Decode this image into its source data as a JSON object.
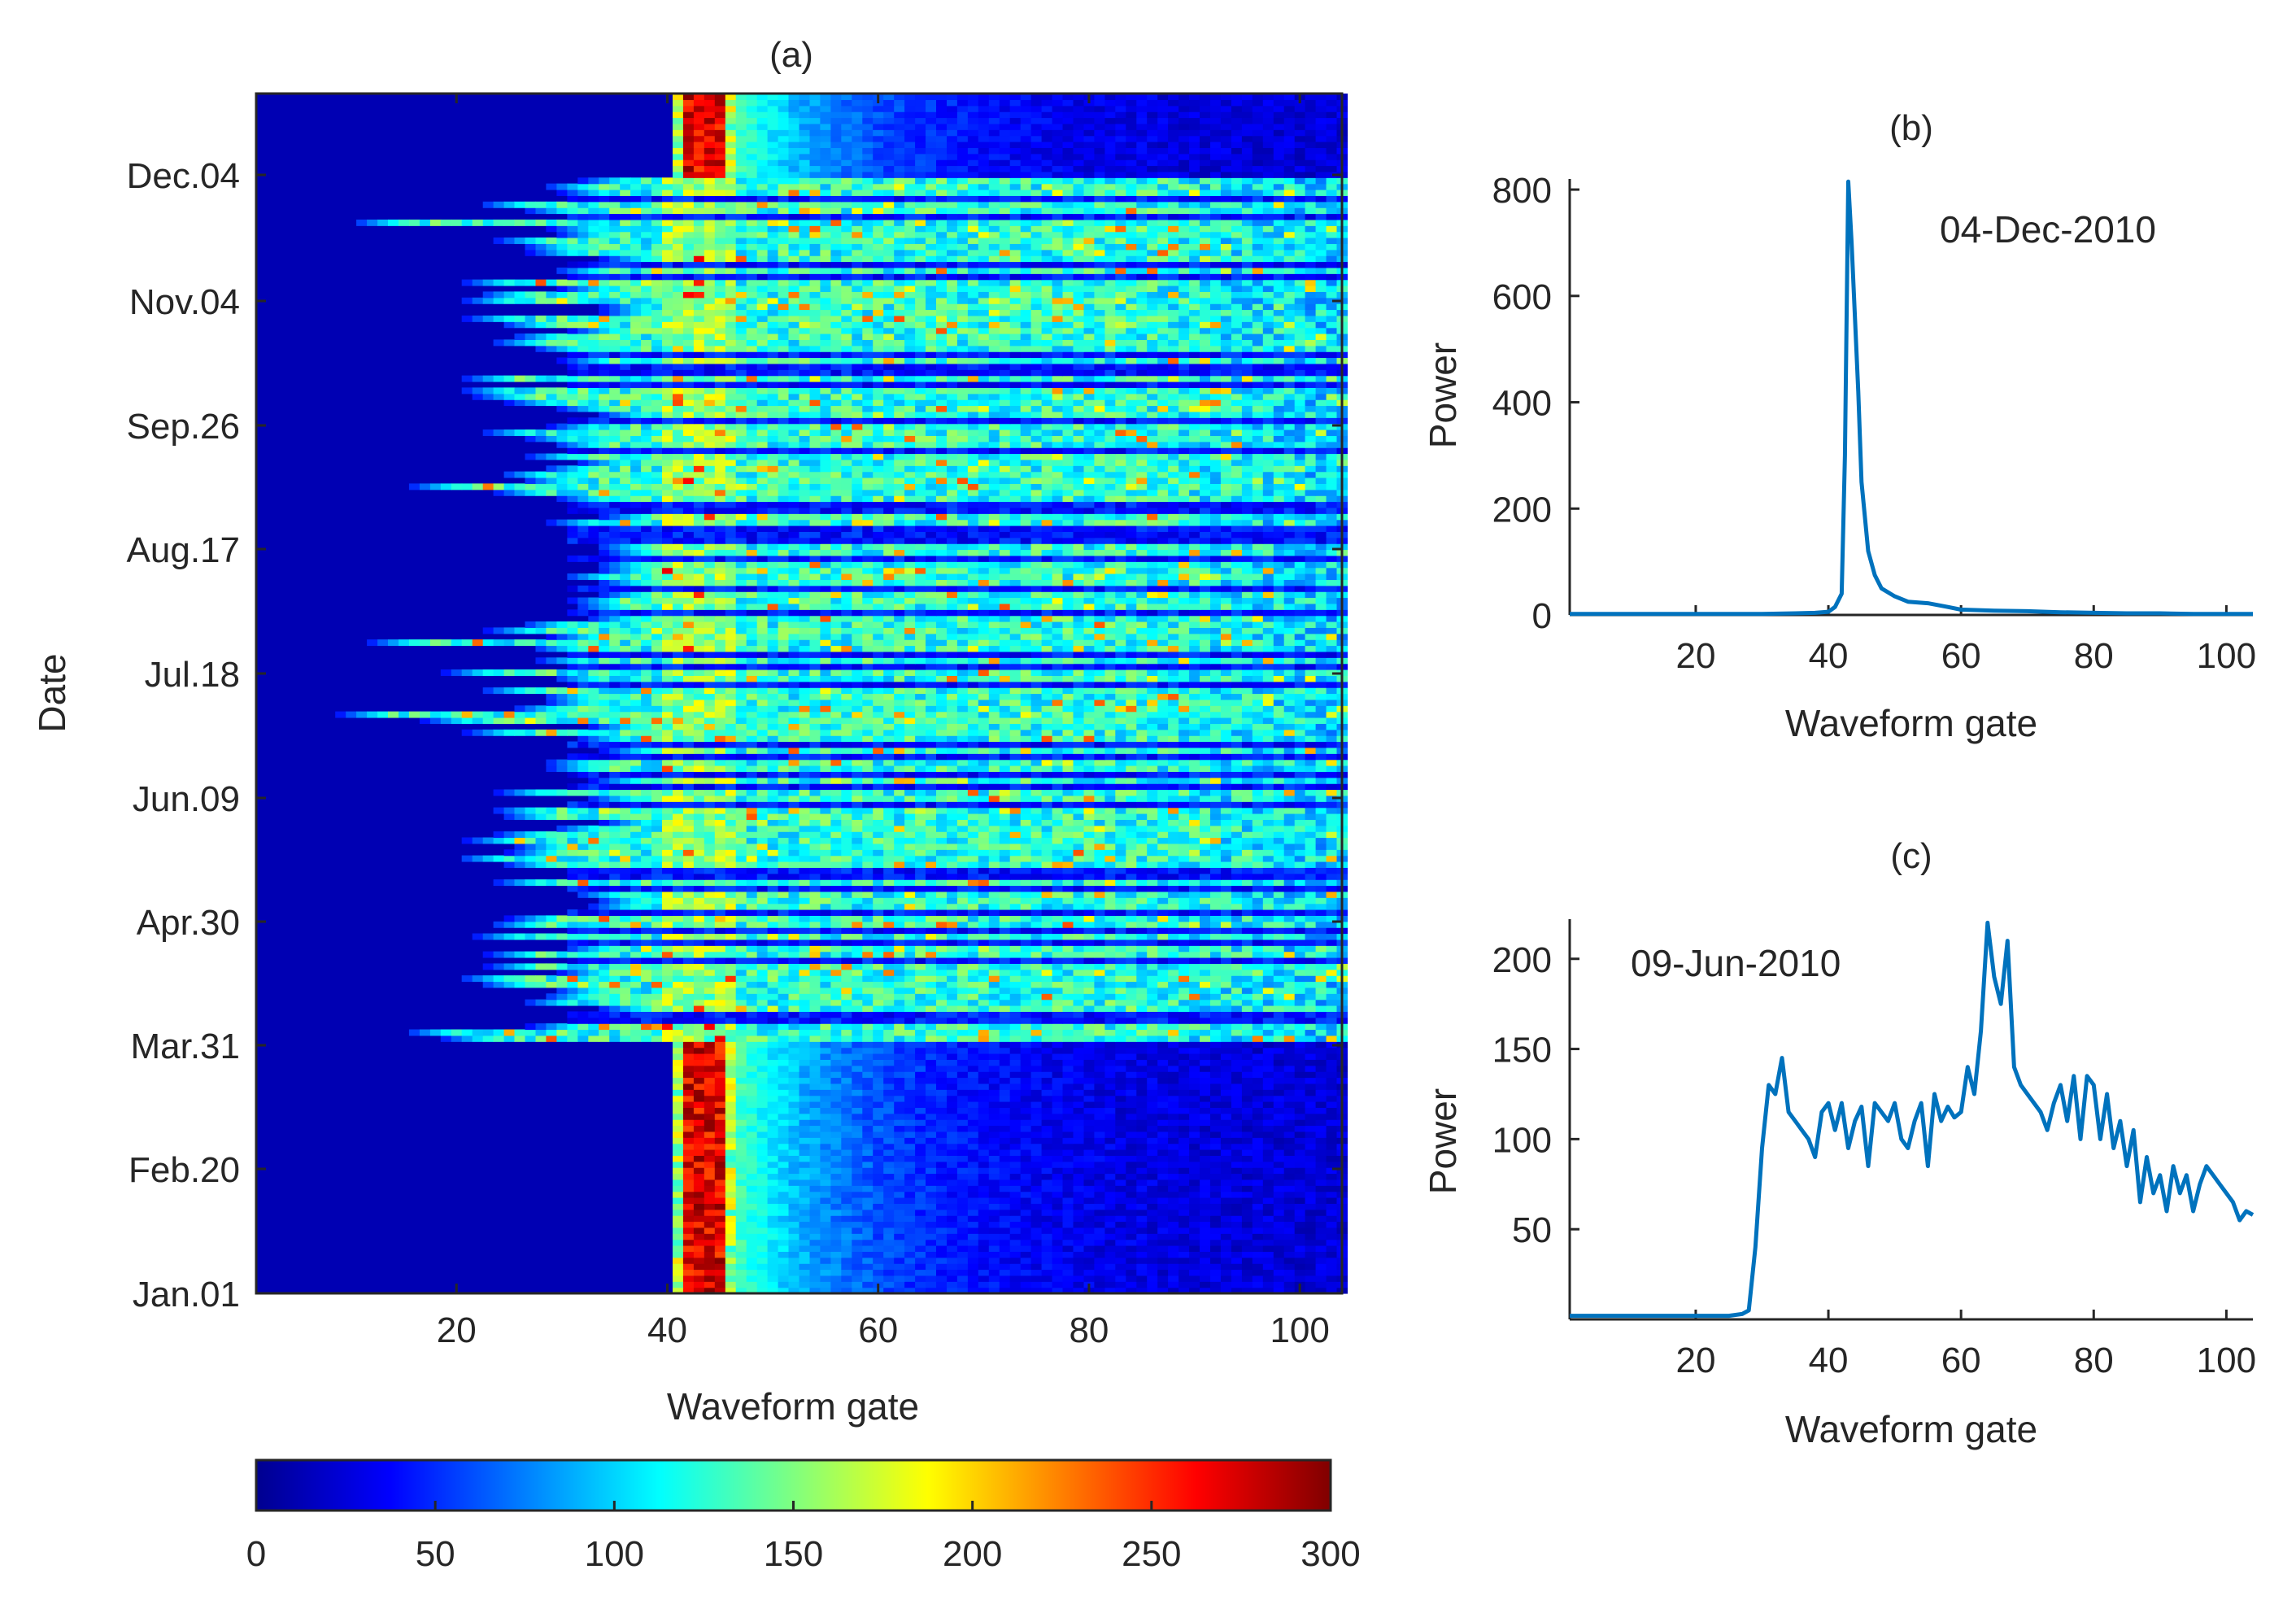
{
  "panels": {
    "a": {
      "label": "(a)",
      "xlabel": "Waveform gate",
      "ylabel": "Date",
      "xlim": [
        1,
        104
      ],
      "xticks": [
        20,
        40,
        60,
        80,
        100
      ],
      "dates": [
        "Jan.01",
        "Feb.20",
        "Mar.31",
        "Apr.30",
        "Jun.09",
        "Jul.18",
        "Aug.17",
        "Sep.26",
        "Nov.04",
        "Dec.04"
      ],
      "colorbar": {
        "ticks": [
          0,
          50,
          100,
          150,
          200,
          250,
          300
        ],
        "range": [
          0,
          300
        ],
        "colormap": "jet"
      }
    },
    "b": {
      "label": "(b)",
      "annotation": "04-Dec-2010",
      "xlabel": "Waveform gate",
      "ylabel": "Power",
      "xlim": [
        1,
        104
      ],
      "ylim": [
        0,
        820
      ],
      "xticks": [
        20,
        40,
        60,
        80,
        100
      ],
      "yticks": [
        0,
        200,
        400,
        600,
        800
      ]
    },
    "c": {
      "label": "(c)",
      "annotation": "09-Jun-2010",
      "xlabel": "Waveform gate",
      "ylabel": "Power",
      "xlim": [
        1,
        104
      ],
      "ylim": [
        0,
        222
      ],
      "xticks": [
        20,
        40,
        60,
        80,
        100
      ],
      "yticks": [
        50,
        100,
        150,
        200
      ]
    }
  },
  "chart_data": [
    {
      "type": "heatmap",
      "title": "(a)",
      "xlabel": "Waveform gate",
      "ylabel": "Date",
      "x_range": [
        1,
        104
      ],
      "y_categories": [
        "Jan.01",
        "Feb.20",
        "Mar.31",
        "Apr.30",
        "Jun.09",
        "Jul.18",
        "Aug.17",
        "Sep.26",
        "Nov.04",
        "Dec.04"
      ],
      "value_range": [
        0,
        300
      ],
      "colormap": "jet",
      "grid": false
    },
    {
      "type": "line",
      "title": "(b)",
      "annotation": "04-Dec-2010",
      "xlabel": "Waveform gate",
      "ylabel": "Power",
      "xlim": [
        1,
        104
      ],
      "ylim": [
        0,
        820
      ],
      "color": "#0072BD",
      "x": [
        1,
        5,
        10,
        15,
        20,
        25,
        30,
        35,
        38,
        40,
        41,
        42,
        42.5,
        43,
        43.5,
        44,
        44.5,
        45,
        46,
        47,
        48,
        50,
        52,
        55,
        58,
        60,
        65,
        70,
        75,
        80,
        85,
        90,
        95,
        100,
        104
      ],
      "y": [
        2,
        2,
        2,
        2,
        2,
        2,
        2,
        3,
        4,
        6,
        15,
        40,
        300,
        815,
        700,
        560,
        420,
        250,
        120,
        75,
        50,
        35,
        25,
        22,
        15,
        10,
        8,
        7,
        5,
        4,
        3,
        3,
        2,
        2,
        2
      ]
    },
    {
      "type": "line",
      "title": "(c)",
      "annotation": "09-Jun-2010",
      "xlabel": "Waveform gate",
      "ylabel": "Power",
      "xlim": [
        1,
        104
      ],
      "ylim": [
        0,
        222
      ],
      "color": "#0072BD",
      "x": [
        1,
        5,
        10,
        15,
        20,
        25,
        27,
        28,
        29,
        30,
        31,
        32,
        33,
        34,
        35,
        36,
        37,
        38,
        39,
        40,
        41,
        42,
        43,
        44,
        45,
        46,
        47,
        48,
        49,
        50,
        51,
        52,
        53,
        54,
        55,
        56,
        57,
        58,
        59,
        60,
        61,
        62,
        63,
        64,
        65,
        66,
        67,
        68,
        69,
        70,
        71,
        72,
        73,
        74,
        75,
        76,
        77,
        78,
        79,
        80,
        81,
        82,
        83,
        84,
        85,
        86,
        87,
        88,
        89,
        90,
        91,
        92,
        93,
        94,
        95,
        96,
        97,
        98,
        99,
        100,
        101,
        102,
        103,
        104
      ],
      "y": [
        2,
        2,
        2,
        2,
        2,
        2,
        3,
        5,
        40,
        95,
        130,
        125,
        145,
        115,
        110,
        105,
        100,
        90,
        115,
        120,
        105,
        120,
        95,
        110,
        118,
        85,
        120,
        115,
        110,
        120,
        100,
        95,
        110,
        120,
        85,
        125,
        110,
        118,
        112,
        115,
        140,
        125,
        160,
        220,
        190,
        175,
        210,
        140,
        130,
        125,
        120,
        115,
        105,
        120,
        130,
        110,
        135,
        100,
        135,
        130,
        100,
        125,
        95,
        110,
        85,
        105,
        65,
        90,
        70,
        80,
        60,
        85,
        70,
        80,
        60,
        75,
        85,
        80,
        75,
        70,
        65,
        55,
        60,
        58
      ]
    }
  ]
}
